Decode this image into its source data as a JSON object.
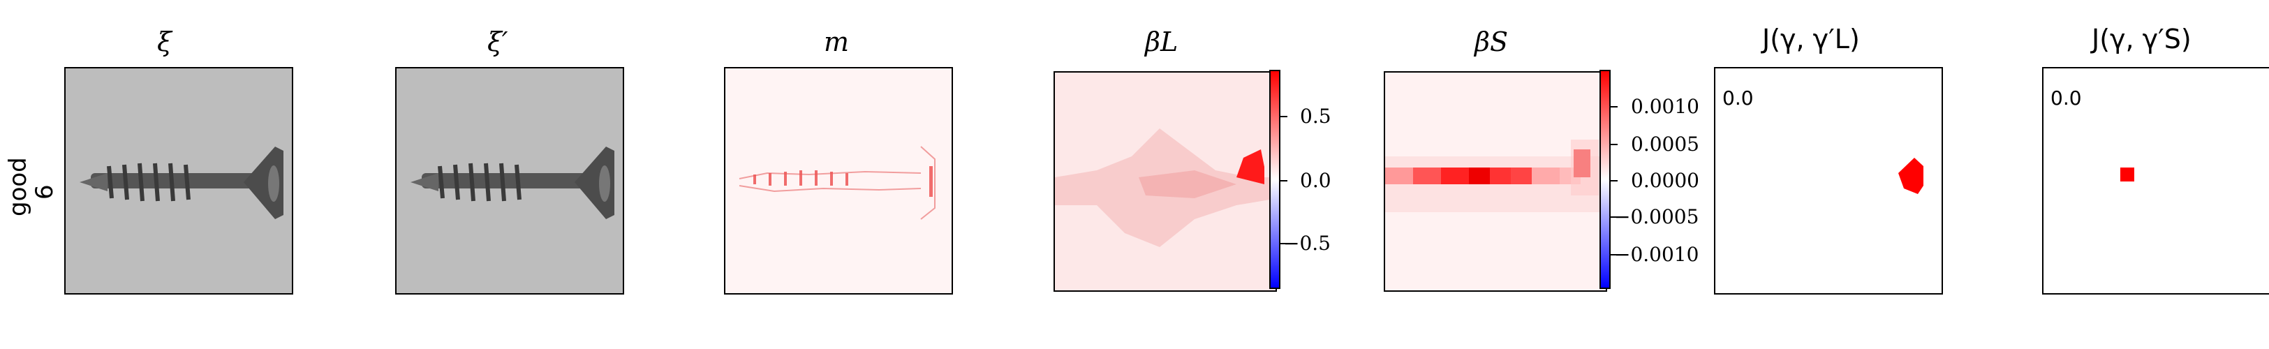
{
  "row_label": {
    "line1": "good",
    "line2": "6"
  },
  "panels": [
    {
      "id": "xi",
      "title": "ξ"
    },
    {
      "id": "xi_prime",
      "title": "ξ′"
    },
    {
      "id": "m",
      "title": "m"
    },
    {
      "id": "beta_L",
      "title": "βL",
      "colorbar_ticks": [
        "0.5",
        "0.0",
        "−0.5"
      ]
    },
    {
      "id": "beta_S",
      "title": "βS",
      "colorbar_ticks": [
        "0.0010",
        "0.0005",
        "0.0000",
        "−0.0005",
        "−0.0010"
      ]
    },
    {
      "id": "J_L",
      "title": "J(γ, γ′L)",
      "value_label": "0.0"
    },
    {
      "id": "J_S",
      "title": "J(γ, γ′S)",
      "value_label": "0.0"
    }
  ],
  "colors": {
    "positive": "#ff0000",
    "negative": "#0000ff",
    "background_gray": "#bdbdbd"
  }
}
